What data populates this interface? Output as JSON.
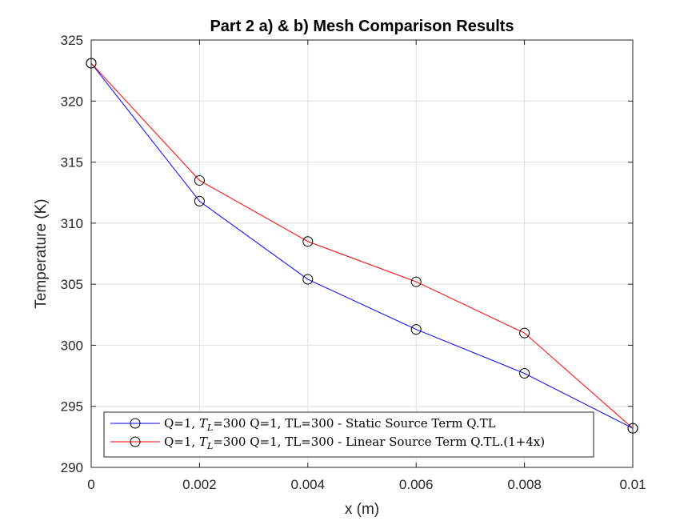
{
  "chart_data": {
    "type": "line",
    "title": "Part 2 a) & b) Mesh Comparison Results",
    "xlabel": "x (m)",
    "ylabel": "Temperature (K)",
    "xlim": [
      0,
      0.01
    ],
    "ylim": [
      290,
      325
    ],
    "xticks": [
      0,
      0.002,
      0.004,
      0.006,
      0.008,
      0.01
    ],
    "xtick_labels": [
      "0",
      "0.002",
      "0.004",
      "0.006",
      "0.008",
      "0.01"
    ],
    "yticks": [
      290,
      295,
      300,
      305,
      310,
      315,
      320,
      325
    ],
    "ytick_labels": [
      "290",
      "295",
      "300",
      "305",
      "310",
      "315",
      "320",
      "325"
    ],
    "grid": true,
    "legend_position": "bottom-left",
    "marker": "open-circle",
    "x": [
      0,
      0.002,
      0.004,
      0.006,
      0.008,
      0.01
    ],
    "series": [
      {
        "name": "Q=1, T_L=300 Q=1, TL=300 - Static Source Term Q.TL",
        "legend_prefix": "Q=1, ",
        "legend_var": "T",
        "legend_sub": "L",
        "legend_suffix": "=300 Q=1, TL=300 - Static Source Term Q.TL",
        "color": "#0000ff",
        "values": [
          323.1,
          311.8,
          305.4,
          301.3,
          297.7,
          293.2
        ]
      },
      {
        "name": "Q=1, T_L=300 Q=1, TL=300 - Linear Source Term Q.TL.(1+4x)",
        "legend_prefix": "Q=1, ",
        "legend_var": "T",
        "legend_sub": "L",
        "legend_suffix": "=300 Q=1, TL=300 - Linear Source Term Q.TL.(1+4x)",
        "color": "#ff0000",
        "values": [
          323.1,
          313.5,
          308.5,
          305.2,
          301.0,
          293.2
        ]
      }
    ]
  }
}
